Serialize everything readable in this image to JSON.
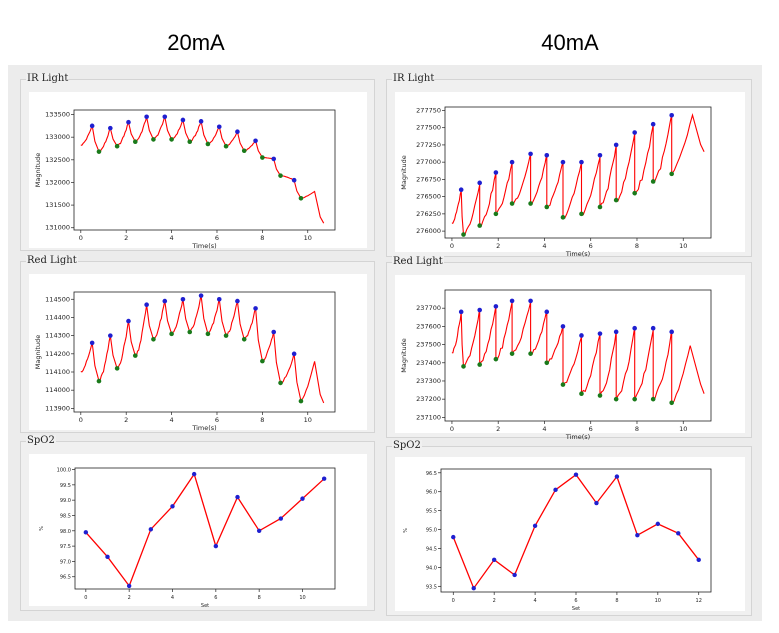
{
  "columns": [
    {
      "header": "20mA"
    },
    {
      "header": "40mA"
    }
  ],
  "panels": {
    "ir_label": "IR Light",
    "red_label": "Red Light",
    "spo2_label": "SpO2"
  },
  "colors": {
    "signal": "#ff0000",
    "peak_marker": "#1f1fd0",
    "valley_marker": "#1a7a1a",
    "spo2_line": "#ff0000",
    "spo2_marker": "#1f1fd0"
  },
  "chart_data": [
    {
      "id": "ir-20mA",
      "type": "line",
      "column": "20mA",
      "panel": "IR Light",
      "xlabel": "Time(s)",
      "ylabel": "Magnitude",
      "xlim": [
        -0.3,
        11.2
      ],
      "ylim": [
        130950,
        133600
      ],
      "xticks": [
        0,
        2,
        4,
        6,
        8,
        10
      ],
      "yticks": [
        131000,
        131500,
        132000,
        132500,
        133000,
        133500
      ],
      "peaks_x": [
        0.5,
        1.3,
        2.1,
        2.9,
        3.7,
        4.5,
        5.3,
        6.1,
        6.9,
        7.7,
        8.5,
        9.4
      ],
      "peaks": [
        133250,
        133200,
        133330,
        133450,
        133450,
        133380,
        133350,
        133230,
        133120,
        132920,
        132520,
        132050
      ],
      "valleys_x": [
        0.8,
        1.6,
        2.4,
        3.2,
        4.0,
        4.8,
        5.6,
        6.4,
        7.2,
        8.0,
        8.8,
        9.7
      ],
      "valleys": [
        132680,
        132800,
        132900,
        132950,
        132950,
        132900,
        132850,
        132800,
        132700,
        132550,
        132150,
        131650
      ],
      "end": {
        "x": 10.7,
        "y": 131100
      },
      "end_peak": {
        "x": 10.3,
        "y": 131800
      }
    },
    {
      "id": "red-20mA",
      "type": "line",
      "column": "20mA",
      "panel": "Red Light",
      "xlabel": "Time(s)",
      "ylabel": "Magnitude",
      "xlim": [
        -0.3,
        11.2
      ],
      "ylim": [
        113880,
        114540
      ],
      "xticks": [
        0,
        2,
        4,
        6,
        8,
        10
      ],
      "yticks": [
        113900,
        114000,
        114100,
        114200,
        114300,
        114400,
        114500
      ],
      "peaks_x": [
        0.5,
        1.3,
        2.1,
        2.9,
        3.7,
        4.5,
        5.3,
        6.1,
        6.9,
        7.7,
        8.5,
        9.4
      ],
      "peaks": [
        114260,
        114300,
        114380,
        114470,
        114490,
        114500,
        114520,
        114500,
        114490,
        114450,
        114320,
        114200
      ],
      "valleys_x": [
        0.8,
        1.6,
        2.4,
        3.2,
        4.0,
        4.8,
        5.6,
        6.4,
        7.2,
        8.0,
        8.8,
        9.7
      ],
      "valleys": [
        114050,
        114120,
        114190,
        114280,
        114310,
        114320,
        114310,
        114300,
        114280,
        114160,
        114040,
        113940
      ],
      "end": {
        "x": 10.7,
        "y": 113930
      },
      "end_peak": {
        "x": 10.3,
        "y": 114160
      }
    },
    {
      "id": "spo2-20mA",
      "type": "line",
      "column": "20mA",
      "panel": "SpO2",
      "xlabel": "Set",
      "ylabel": "%",
      "xlim": [
        -0.5,
        11.5
      ],
      "ylim": [
        96.1,
        100.05
      ],
      "xticks": [
        0,
        2,
        4,
        6,
        8,
        10
      ],
      "yticks": [
        96.5,
        97.0,
        97.5,
        98.0,
        98.5,
        99.0,
        99.5,
        100.0
      ],
      "x": [
        0,
        1,
        2,
        3,
        4,
        5,
        6,
        7,
        8,
        9,
        10,
        11
      ],
      "y": [
        97.95,
        97.15,
        96.2,
        98.05,
        98.8,
        99.85,
        97.5,
        99.1,
        98.0,
        98.4,
        99.05,
        99.7
      ]
    },
    {
      "id": "ir-40mA",
      "type": "line",
      "column": "40mA",
      "panel": "IR Light",
      "xlabel": "Time(s)",
      "ylabel": "Magnitude",
      "xlim": [
        -0.3,
        11.2
      ],
      "ylim": [
        275900,
        277800
      ],
      "xticks": [
        0,
        2,
        4,
        6,
        8,
        10
      ],
      "yticks": [
        276000,
        276250,
        276500,
        276750,
        277000,
        277250,
        277500,
        277750
      ],
      "peaks_x": [
        0.4,
        1.2,
        1.9,
        2.6,
        3.4,
        4.1,
        4.8,
        5.6,
        6.4,
        7.1,
        7.9,
        8.7,
        9.5
      ],
      "peaks": [
        276600,
        276700,
        276850,
        277000,
        277120,
        277100,
        277000,
        277000,
        277100,
        277250,
        277430,
        277550,
        277680
      ],
      "valleys_x": [
        0.5,
        1.2,
        1.9,
        2.6,
        3.4,
        4.1,
        4.8,
        5.6,
        6.4,
        7.1,
        7.9,
        8.7,
        9.5
      ],
      "valleys": [
        275950,
        276080,
        276250,
        276400,
        276400,
        276350,
        276200,
        276250,
        276350,
        276450,
        276550,
        276720,
        276830
      ],
      "end": {
        "x": 10.9,
        "y": 277150
      },
      "end_peak": {
        "x": 10.4,
        "y": 277680
      }
    },
    {
      "id": "red-40mA",
      "type": "line",
      "column": "40mA",
      "panel": "Red Light",
      "xlabel": "Time(s)",
      "ylabel": "Magnitude",
      "xlim": [
        -0.3,
        11.2
      ],
      "ylim": [
        237080,
        237800
      ],
      "xticks": [
        0,
        2,
        4,
        6,
        8,
        10
      ],
      "yticks": [
        237100,
        237200,
        237300,
        237400,
        237500,
        237600,
        237700
      ],
      "peaks_x": [
        0.4,
        1.2,
        1.9,
        2.6,
        3.4,
        4.1,
        4.8,
        5.6,
        6.4,
        7.1,
        7.9,
        8.7,
        9.5
      ],
      "peaks": [
        237680,
        237690,
        237710,
        237740,
        237740,
        237680,
        237600,
        237550,
        237560,
        237570,
        237590,
        237590,
        237570
      ],
      "valleys_x": [
        0.5,
        1.2,
        1.9,
        2.6,
        3.4,
        4.1,
        4.8,
        5.6,
        6.4,
        7.1,
        7.9,
        8.7,
        9.5
      ],
      "valleys": [
        237380,
        237390,
        237420,
        237450,
        237450,
        237400,
        237280,
        237230,
        237220,
        237200,
        237200,
        237200,
        237180
      ],
      "end": {
        "x": 10.9,
        "y": 237230
      },
      "end_peak": {
        "x": 10.3,
        "y": 237490
      }
    },
    {
      "id": "spo2-40mA",
      "type": "line",
      "column": "40mA",
      "panel": "SpO2",
      "xlabel": "Set",
      "ylabel": "%",
      "xlim": [
        -0.6,
        12.6
      ],
      "ylim": [
        93.35,
        96.6
      ],
      "xticks": [
        0,
        2,
        4,
        6,
        8,
        10,
        12
      ],
      "yticks": [
        93.5,
        94.0,
        94.5,
        95.0,
        95.5,
        96.0,
        96.5
      ],
      "x": [
        0,
        1,
        2,
        3,
        4,
        5,
        6,
        7,
        8,
        9,
        10,
        11,
        12
      ],
      "y": [
        94.8,
        93.45,
        94.2,
        93.8,
        95.1,
        96.05,
        96.45,
        95.7,
        96.4,
        94.85,
        95.15,
        94.9,
        94.2
      ]
    }
  ]
}
